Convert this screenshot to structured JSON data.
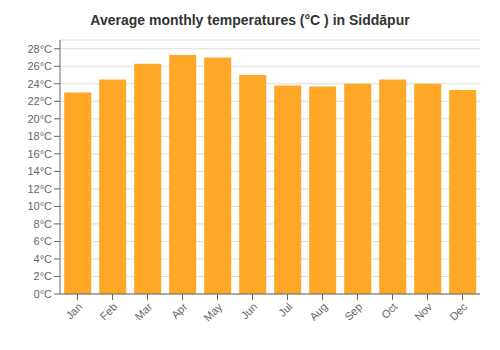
{
  "chart_data": {
    "type": "bar",
    "title": "Average monthly temperatures (°C ) in Siddāpur",
    "categories": [
      "Jan",
      "Feb",
      "Mar",
      "Apr",
      "May",
      "Jun",
      "Jul",
      "Aug",
      "Sep",
      "Oct",
      "Nov",
      "Dec"
    ],
    "values": [
      23.0,
      24.5,
      26.3,
      27.3,
      27.0,
      25.0,
      23.8,
      23.7,
      24.0,
      24.5,
      24.0,
      23.3
    ],
    "color": "#FFA726",
    "ylim": [
      0,
      29
    ],
    "yticks": [
      {
        "value": 0,
        "label": "0°C"
      },
      {
        "value": 2,
        "label": "2°C"
      },
      {
        "value": 4,
        "label": "4°C"
      },
      {
        "value": 6,
        "label": "6°C"
      },
      {
        "value": 8,
        "label": "8°C"
      },
      {
        "value": 10,
        "label": "10°C"
      },
      {
        "value": 12,
        "label": "12°C"
      },
      {
        "value": 14,
        "label": "14°C"
      },
      {
        "value": 16,
        "label": "16°C"
      },
      {
        "value": 18,
        "label": "18°C"
      },
      {
        "value": 20,
        "label": "20°C"
      },
      {
        "value": 22,
        "label": "22°C"
      },
      {
        "value": 24,
        "label": "24°C"
      },
      {
        "value": 26,
        "label": "26°C"
      },
      {
        "value": 28,
        "label": "28°C"
      }
    ],
    "grid": true
  }
}
